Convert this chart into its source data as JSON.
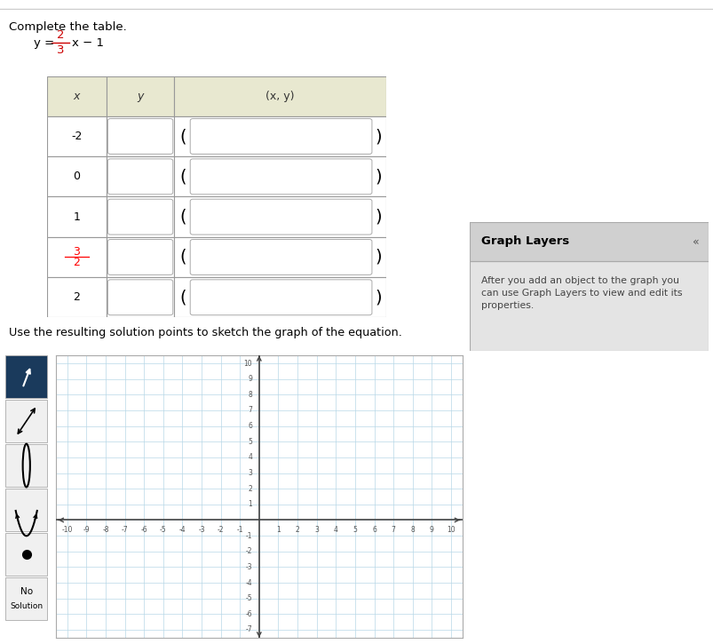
{
  "title_text": "Complete the table.",
  "fraction_num": "2",
  "fraction_den": "3",
  "equation_suffix": "x − 1",
  "table_header": [
    "x",
    "y",
    "(x, y)"
  ],
  "x_values": [
    "-2",
    "0",
    "1",
    "3/2",
    "2"
  ],
  "x_values_color": [
    "black",
    "black",
    "black",
    "red",
    "black"
  ],
  "use_text_below": "Use the resulting solution points to sketch the graph of the equation.",
  "graph_layers_title": "Graph Layers",
  "graph_layers_chevron": "«",
  "graph_layers_text": "After you add an object to the graph you\ncan use Graph Layers to view and edit its\nproperties.",
  "axis_range": [
    -10,
    10
  ],
  "ymin": -7,
  "ymax": 10,
  "grid_color": "#b8d8e8",
  "axis_color": "#444444",
  "tick_labels_color": "#555555",
  "table_header_bg": "#e8e8d0",
  "table_border_color": "#999999",
  "graph_bg": "#ffffff",
  "toolbar_bg": "#d8d8d8",
  "graph_outer_bg": "#c8c8c8",
  "graph_layers_header_bg": "#d0d0d0",
  "graph_layers_body_bg": "#e4e4e4",
  "no_solution_bg": "#d8d8d8",
  "toolbar_btn_selected_bg": "#1a3a5c",
  "toolbar_btn_bg": "#f0f0f0",
  "page_bg": "#ffffff",
  "border_top_color": "#cccccc"
}
